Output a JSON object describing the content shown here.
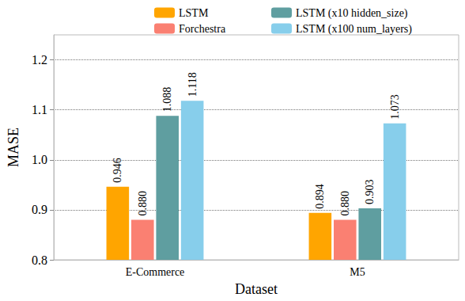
{
  "chart_data": {
    "type": "bar",
    "x_label": "Dataset",
    "y_label": "MASE",
    "categories": [
      "E-Commerce",
      "M5"
    ],
    "series": [
      {
        "name": "LSTM",
        "color": "#ffa500",
        "values": [
          0.946,
          0.894
        ],
        "value_labels": [
          "0.946",
          "0.894"
        ]
      },
      {
        "name": "Forchestra",
        "color": "#fa8072",
        "values": [
          0.88,
          0.88
        ],
        "value_labels": [
          "0.880",
          "0.880"
        ]
      },
      {
        "name": "LSTM (x10 hidden_size)",
        "color": "#5f9ea0",
        "values": [
          1.088,
          0.903
        ],
        "value_labels": [
          "1.088",
          "0.903"
        ]
      },
      {
        "name": "LSTM (x100 num_layers)",
        "color": "#87ceeb",
        "values": [
          1.118,
          1.073
        ],
        "value_labels": [
          "1.118",
          "1.073"
        ]
      }
    ],
    "ylim": [
      0.8,
      1.25
    ],
    "yticks": [
      0.8,
      0.9,
      {
        "value": 1.0,
        "label": "1.0"
      },
      1.1,
      1.2
    ],
    "grid": true,
    "legend": "upper right",
    "data_labels": true
  }
}
